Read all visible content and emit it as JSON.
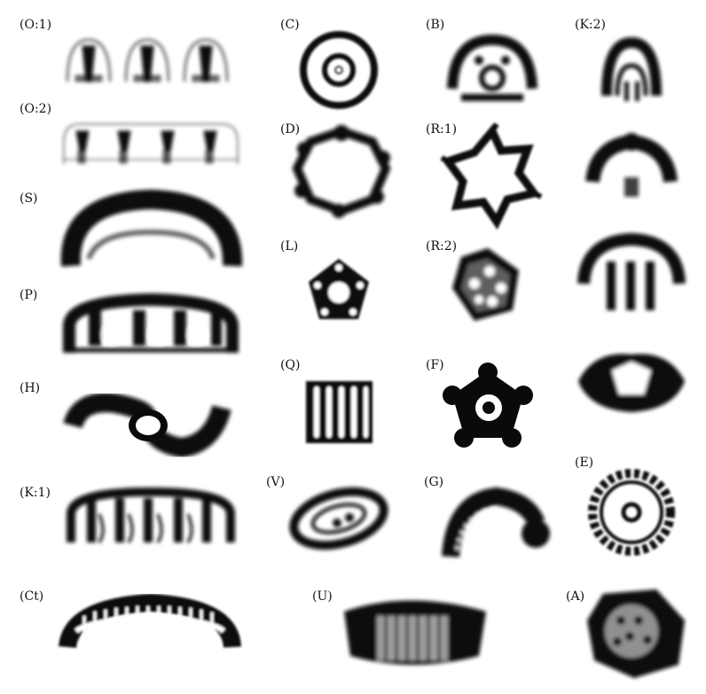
{
  "figure": {
    "panels": [
      {
        "id": "O1",
        "label": "(O:1)"
      },
      {
        "id": "C",
        "label": "(C)"
      },
      {
        "id": "B",
        "label": "(B)"
      },
      {
        "id": "K2",
        "label": "(K:2)"
      },
      {
        "id": "O2",
        "label": "(O:2)"
      },
      {
        "id": "D",
        "label": "(D)"
      },
      {
        "id": "R1",
        "label": "(R:1)"
      },
      {
        "id": "S",
        "label": "(S)"
      },
      {
        "id": "L",
        "label": "(L)"
      },
      {
        "id": "R2",
        "label": "(R:2)"
      },
      {
        "id": "P",
        "label": "(P)"
      },
      {
        "id": "H",
        "label": "(H)"
      },
      {
        "id": "Q",
        "label": "(Q)"
      },
      {
        "id": "F",
        "label": "(F)"
      },
      {
        "id": "E",
        "label": "(E)"
      },
      {
        "id": "K1",
        "label": "(K:1)"
      },
      {
        "id": "V",
        "label": "(V)"
      },
      {
        "id": "G",
        "label": "(G)"
      },
      {
        "id": "Ct",
        "label": "(Ct)"
      },
      {
        "id": "U",
        "label": "(U)"
      },
      {
        "id": "A",
        "label": "(A)"
      }
    ],
    "ink_color": "#0a0a0a",
    "background": "#ffffff"
  }
}
